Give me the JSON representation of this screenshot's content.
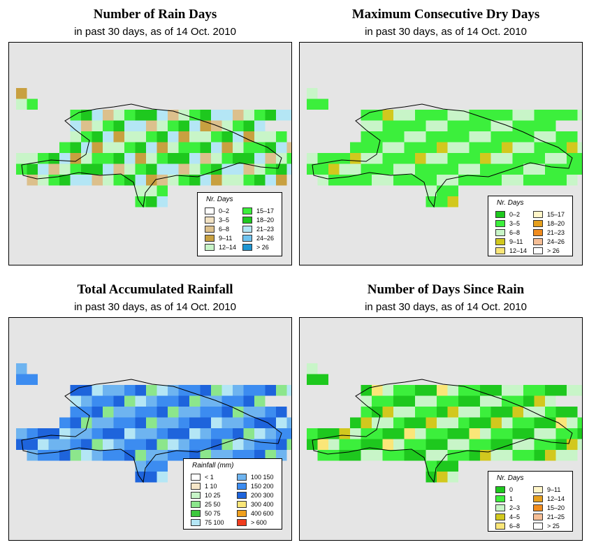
{
  "panels": [
    {
      "title": "Number of Rain Days",
      "subtitle": "in past 30 days, as of  14 Oct. 2010",
      "legend": {
        "title": "Nr. Days",
        "items": [
          {
            "label": "0–2",
            "color": "#ffffff"
          },
          {
            "label": "3–5",
            "color": "#f2e2c4"
          },
          {
            "label": "6–8",
            "color": "#dcc08c"
          },
          {
            "label": "9–11",
            "color": "#c8a040"
          },
          {
            "label": "12–14",
            "color": "#c8f5c8"
          },
          {
            "label": "15–17",
            "color": "#3cef3c"
          },
          {
            "label": "18–20",
            "color": "#1ec81e"
          },
          {
            "label": "21–23",
            "color": "#b4e6f5"
          },
          {
            "label": "24–26",
            "color": "#6ec3ef"
          },
          {
            "label": "> 26",
            "color": "#1e96d2"
          }
        ]
      }
    },
    {
      "title": "Maximum Consecutive Dry Days",
      "subtitle": "in past 30 days, as of  14 Oct. 2010",
      "legend": {
        "title": "Nr. Days",
        "items": [
          {
            "label": "0–2",
            "color": "#1ec81e"
          },
          {
            "label": "3–5",
            "color": "#3cef3c"
          },
          {
            "label": "6–8",
            "color": "#c8f5c8"
          },
          {
            "label": "9–11",
            "color": "#d2c81e"
          },
          {
            "label": "12–14",
            "color": "#fae678"
          },
          {
            "label": "15–17",
            "color": "#fff5c8"
          },
          {
            "label": "18–20",
            "color": "#e6a01e"
          },
          {
            "label": "21–23",
            "color": "#f08c1e"
          },
          {
            "label": "24–26",
            "color": "#f5be96"
          },
          {
            "label": "> 26",
            "color": "#ffffff"
          }
        ]
      }
    },
    {
      "title": "Total Accumulated Rainfall",
      "subtitle": "in past 30 days, as of  14 Oct. 2010",
      "legend": {
        "title": "Rainfall (mm)",
        "items": [
          {
            "label": "< 1",
            "color": "#ffffff"
          },
          {
            "label": "1   10",
            "color": "#f5e6c8"
          },
          {
            "label": "10   25",
            "color": "#c8f5c8"
          },
          {
            "label": "25   50",
            "color": "#8ce68c"
          },
          {
            "label": "50   75",
            "color": "#3cc83c"
          },
          {
            "label": "75   100",
            "color": "#b4e6f5"
          },
          {
            "label": "100   150",
            "color": "#6eb4f0"
          },
          {
            "label": "150   200",
            "color": "#3c8cf0"
          },
          {
            "label": "200   300",
            "color": "#1e64dc"
          },
          {
            "label": "300   400",
            "color": "#fae678"
          },
          {
            "label": "400   600",
            "color": "#f0a01e"
          },
          {
            "label": "> 600",
            "color": "#f03c1e"
          }
        ]
      }
    },
    {
      "title": "Number of Days Since Rain",
      "subtitle": "in past 30 days, as of  14 Oct. 2010",
      "legend": {
        "title": "Nr. Days",
        "items": [
          {
            "label": "0",
            "color": "#1ec81e"
          },
          {
            "label": "1",
            "color": "#3cef3c"
          },
          {
            "label": "2–3",
            "color": "#c8f5c8"
          },
          {
            "label": "4–5",
            "color": "#d2c81e"
          },
          {
            "label": "6–8",
            "color": "#fae678"
          },
          {
            "label": "9–11",
            "color": "#fff5c8"
          },
          {
            "label": "12–14",
            "color": "#e6a01e"
          },
          {
            "label": "15–20",
            "color": "#f08c1e"
          },
          {
            "label": "21–25",
            "color": "#f5be96"
          },
          {
            "label": "> 25",
            "color": "#ffffff"
          }
        ]
      }
    }
  ]
}
